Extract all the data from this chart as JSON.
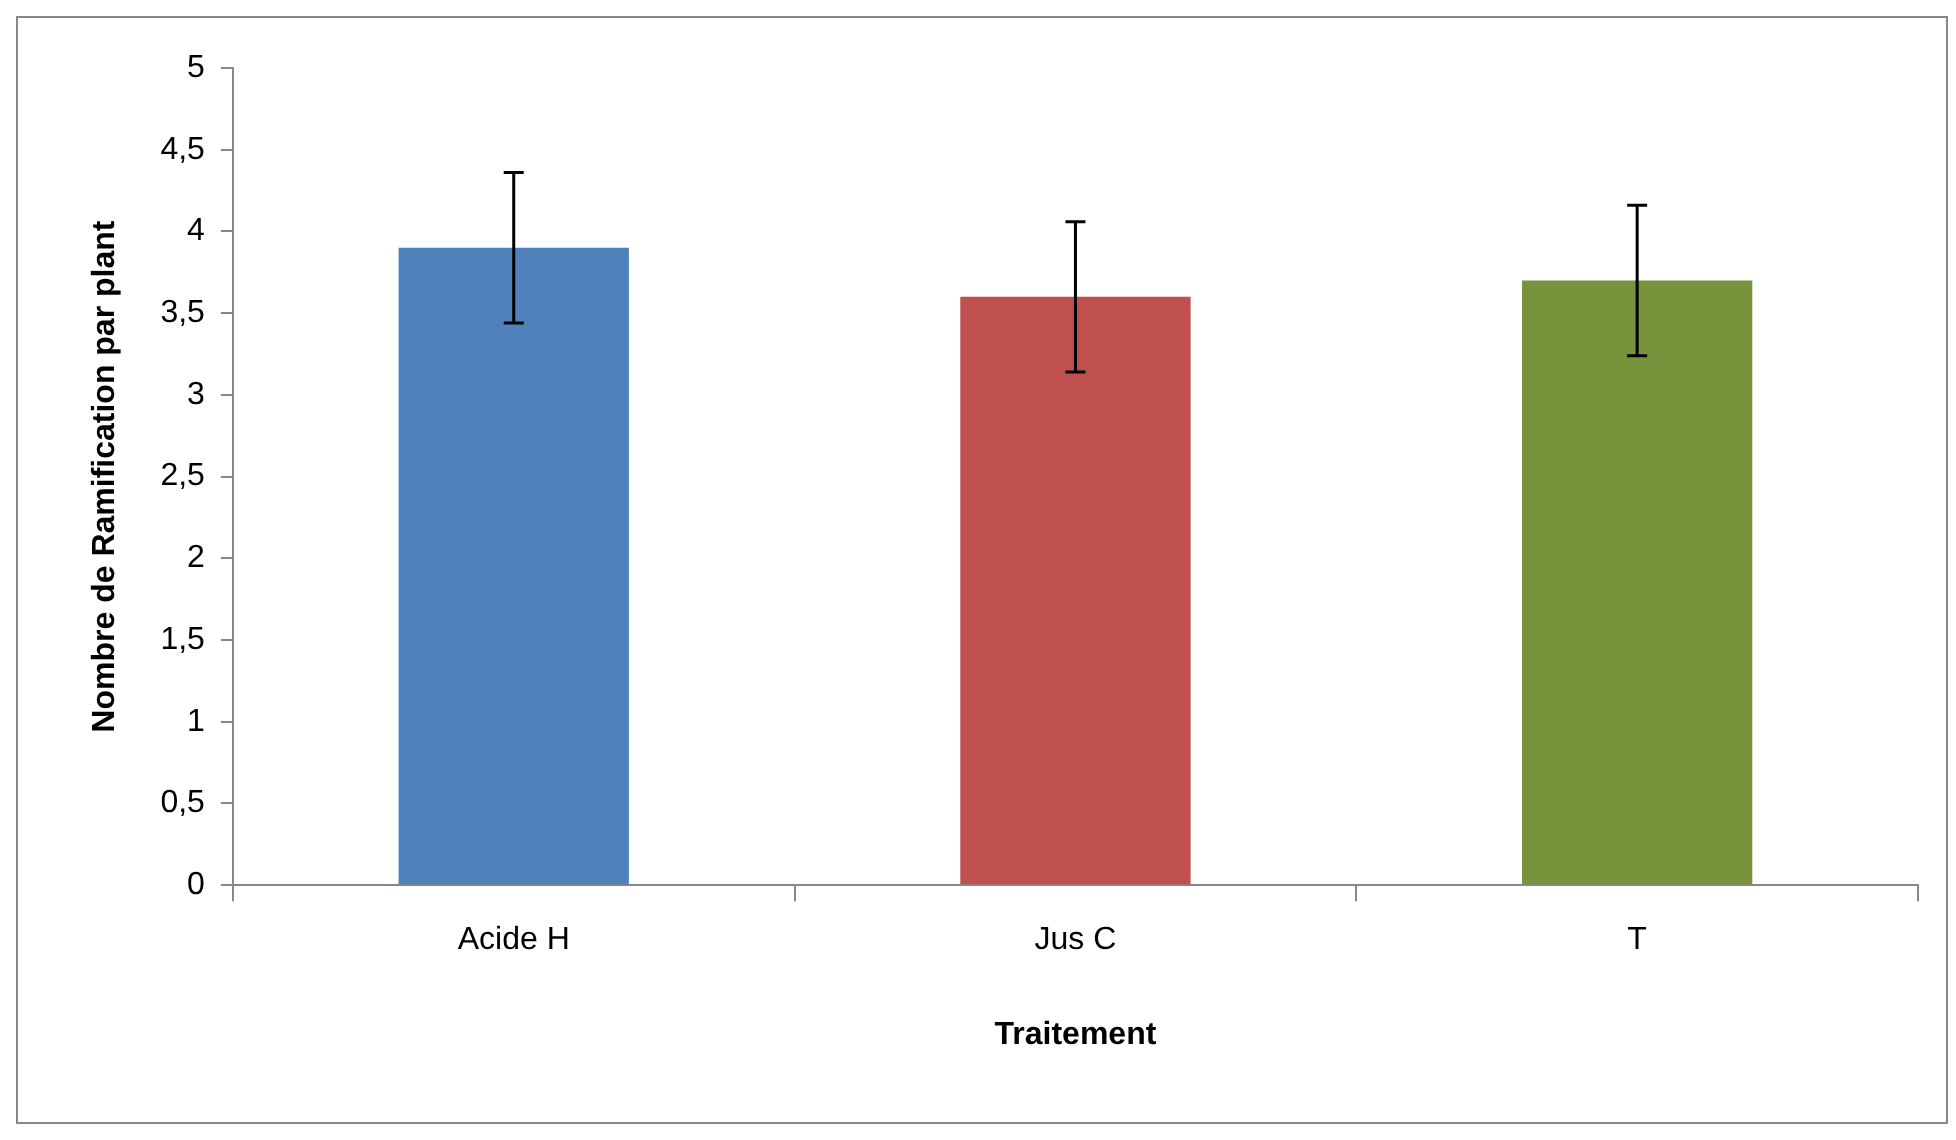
{
  "chart_data": {
    "type": "bar",
    "xlabel": "Traitement",
    "ylabel": "Nombre de Ramification par plant",
    "categories": [
      "Acide H",
      "Jus C",
      "T"
    ],
    "values": [
      3.9,
      3.6,
      3.7
    ],
    "errors": [
      0.46,
      0.46,
      0.46
    ],
    "colors": [
      "#4f81bd",
      "#c0504d",
      "#77933c"
    ],
    "ylim": [
      0,
      5
    ],
    "yticks": [
      0,
      {
        "value": 0.5,
        "label": "0,5"
      },
      1,
      {
        "value": 1.5,
        "label": "1,5"
      },
      2,
      {
        "value": 2.5,
        "label": "2,5"
      },
      3,
      {
        "value": 3.5,
        "label": "3,5"
      },
      4,
      {
        "value": 4.5,
        "label": "4,5"
      },
      5
    ],
    "grid": false,
    "legend": false
  }
}
